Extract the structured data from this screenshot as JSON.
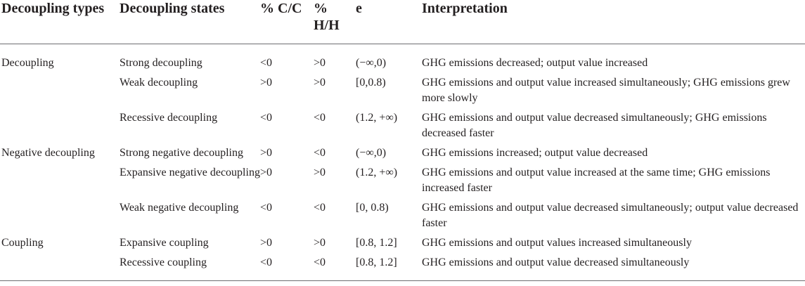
{
  "table": {
    "headers": {
      "types": "Decoupling types",
      "states": "Decoupling states",
      "cc": "% C/C",
      "hh": "% H/H",
      "e": "e",
      "interpretation": "Interpretation"
    },
    "rows": [
      {
        "type": "Decoupling",
        "state": "Strong decoupling",
        "cc": "<0",
        "hh": ">0",
        "e": "(−∞,0)",
        "interpretation": "GHG emissions decreased; output value increased"
      },
      {
        "type": "",
        "state": "Weak decoupling",
        "cc": ">0",
        "hh": ">0",
        "e": "[0,0.8)",
        "interpretation": "GHG emissions and output value increased simultaneously; GHG emissions grew more slowly"
      },
      {
        "type": "",
        "state": "Recessive decoupling",
        "cc": "<0",
        "hh": "<0",
        "e": "(1.2, +∞)",
        "interpretation": "GHG emissions and output value decreased simultaneously; GHG emissions decreased faster"
      },
      {
        "type": "Negative decoupling",
        "state": "Strong negative decoupling",
        "cc": ">0",
        "hh": "<0",
        "e": "(−∞,0)",
        "interpretation": "GHG emissions increased; output value decreased"
      },
      {
        "type": "",
        "state": "Expansive negative decoupling",
        "cc": ">0",
        "hh": ">0",
        "e": "(1.2, +∞)",
        "interpretation": "GHG emissions and output value increased at the same time; GHG emissions increased faster"
      },
      {
        "type": "",
        "state": "Weak negative decoupling",
        "cc": "<0",
        "hh": "<0",
        "e": "[0, 0.8)",
        "interpretation": "GHG emissions and output value decreased simultaneously; output value decreased faster"
      },
      {
        "type": "Coupling",
        "state": "Expansive coupling",
        "cc": ">0",
        "hh": ">0",
        "e": "[0.8, 1.2]",
        "interpretation": "GHG emissions and output values increased simultaneously"
      },
      {
        "type": "",
        "state": "Recessive coupling",
        "cc": "<0",
        "hh": "<0",
        "e": "[0.8, 1.2]",
        "interpretation": "GHG emissions and output value decreased simultaneously"
      }
    ]
  }
}
